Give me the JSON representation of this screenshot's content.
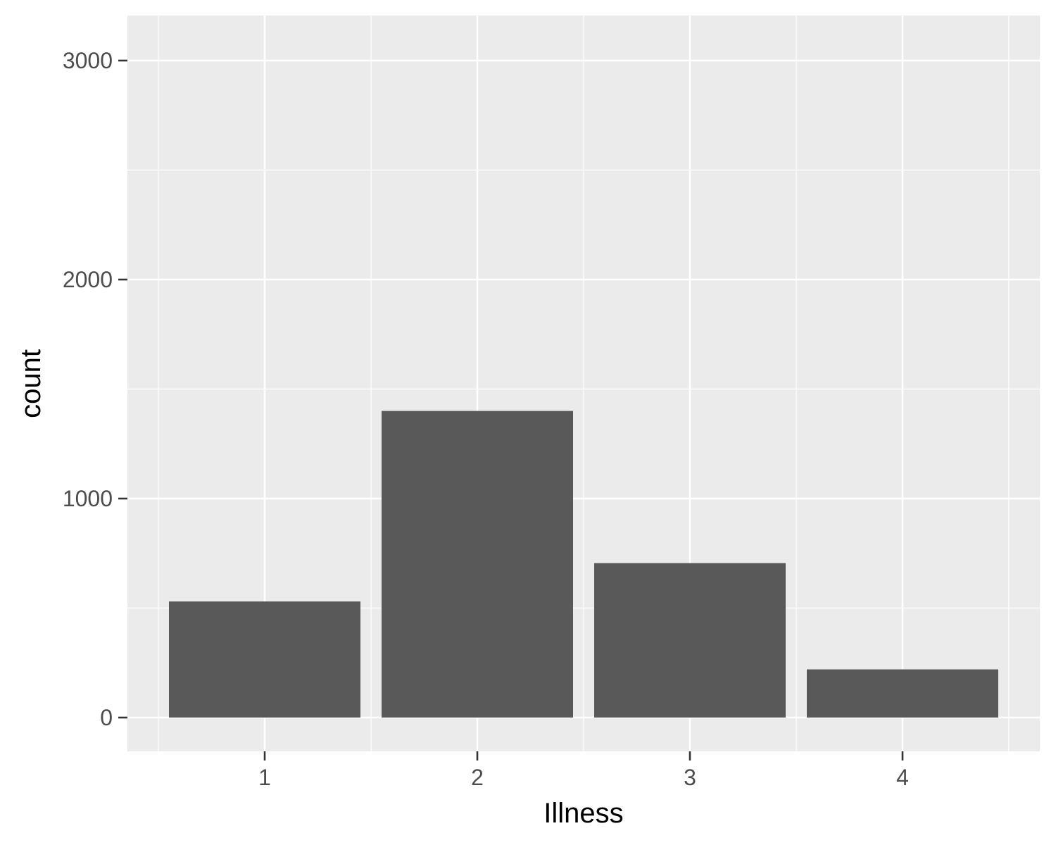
{
  "chart_data": {
    "type": "bar",
    "xlabel": "Illness",
    "ylabel": "count",
    "categories": [
      "1",
      "2",
      "3",
      "4"
    ],
    "values": [
      530,
      1400,
      705,
      220
    ],
    "ylim": [
      -150,
      3200
    ],
    "yticks": [
      0,
      1000,
      2000,
      3000
    ],
    "grid": true,
    "legend": "none",
    "colors": {
      "bar": "#595959",
      "panel": "#ebebeb",
      "grid": "#ffffff",
      "tick_text": "#4d4d4d",
      "tick_mark": "#333333"
    }
  }
}
